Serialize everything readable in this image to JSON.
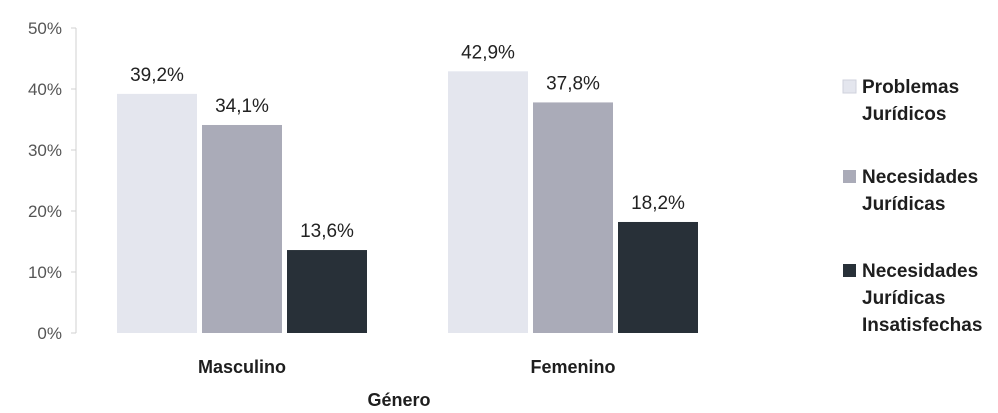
{
  "chart_data": {
    "type": "bar",
    "categories": [
      "Masculino",
      "Femenino"
    ],
    "series": [
      {
        "name": "Problemas Jurídicos",
        "values": [
          39.2,
          42.9
        ],
        "color": "#e4e6ee",
        "value_labels": [
          "39,2%",
          "42,9%"
        ]
      },
      {
        "name": "Necesidades Jurídicas",
        "values": [
          34.1,
          37.8
        ],
        "color": "#aaabb8",
        "value_labels": [
          "34,1%",
          "37,8%"
        ]
      },
      {
        "name": "Necesidades Jurídicas Insatisfechas",
        "values": [
          13.6,
          18.2
        ],
        "color": "#283038",
        "value_labels": [
          "13,6%",
          "18,2%"
        ]
      }
    ],
    "legend_lines": [
      [
        "Problemas",
        "Jurídicos"
      ],
      [
        "Necesidades",
        "Jurídicas"
      ],
      [
        "Necesidades",
        "Jurídicas",
        "Insatisfechas"
      ]
    ],
    "xlabel": "Género",
    "ylabel": "",
    "ylim": [
      0,
      50
    ],
    "ytick_labels": [
      "0%",
      "10%",
      "20%",
      "30%",
      "40%",
      "50%"
    ],
    "ytick_values": [
      0,
      10,
      20,
      30,
      40,
      50
    ],
    "legend_position": "right",
    "grid": false
  }
}
